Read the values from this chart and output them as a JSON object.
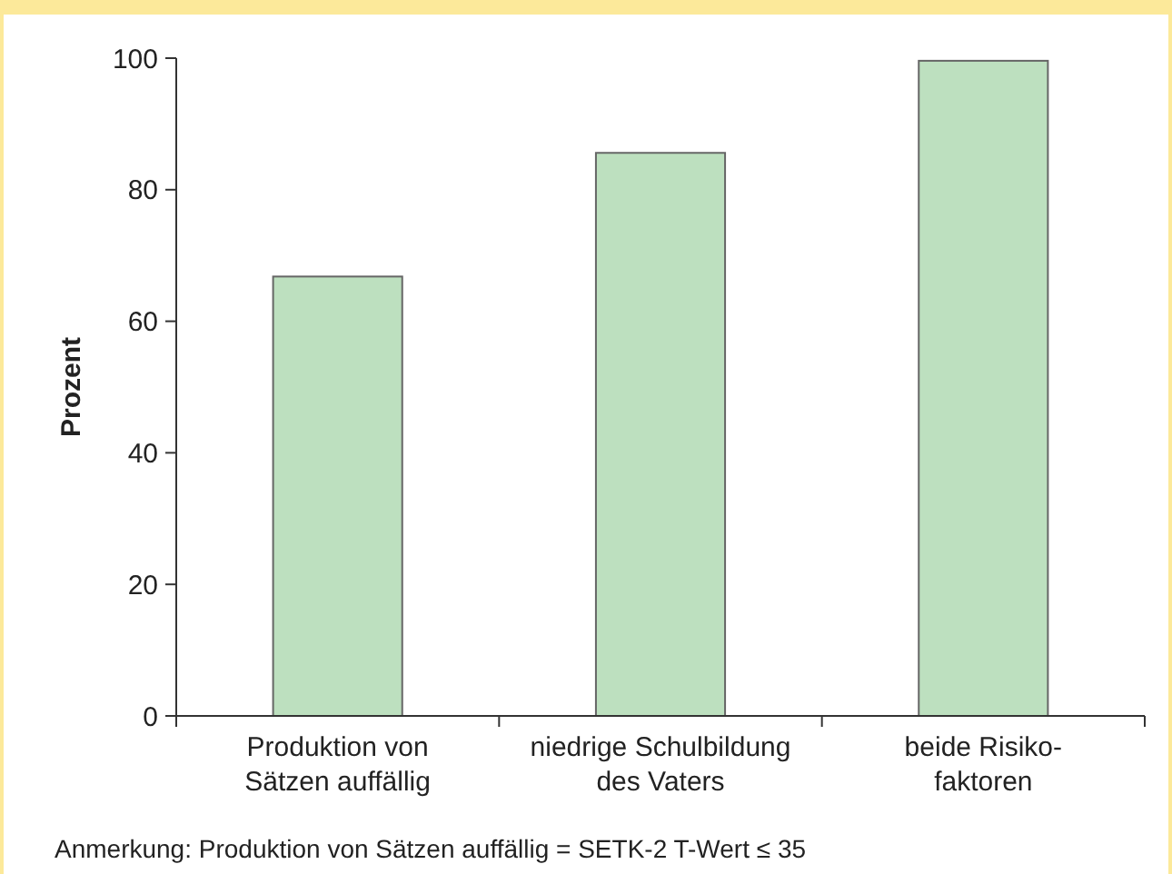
{
  "chart_data": {
    "type": "bar",
    "ylabel": "Prozent",
    "categories": [
      "Produktion von\nSätzen auffällig",
      "niedrige Schulbildung\ndes Vaters",
      "beide Risiko-\nfaktoren"
    ],
    "values": [
      66.8,
      85.6,
      99.6
    ],
    "color": "#bde0bf",
    "ylim": [
      0,
      100
    ],
    "yticks": [
      0,
      20,
      40,
      60,
      80,
      100
    ],
    "grid": false,
    "annotations": [
      "Anmerkung: Produktion von Sätzen auffällig = SETK-2 T-Wert ≤ 35"
    ]
  }
}
